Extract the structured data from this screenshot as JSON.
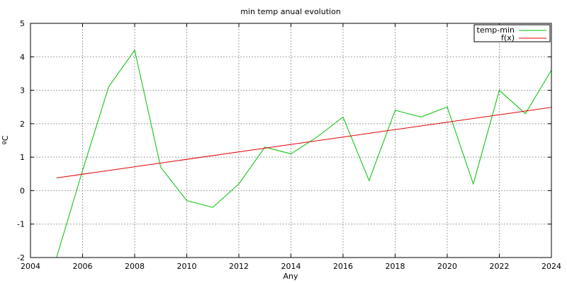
{
  "chart_data": {
    "type": "line",
    "title": "min temp anual evolution",
    "xlabel": "Any",
    "ylabel": "ºC",
    "xlim": [
      2004,
      2024
    ],
    "ylim": [
      -2,
      5
    ],
    "xticks": [
      2004,
      2006,
      2008,
      2010,
      2012,
      2014,
      2016,
      2018,
      2020,
      2022,
      2024
    ],
    "yticks": [
      -2,
      -1,
      0,
      1,
      2,
      3,
      4,
      5
    ],
    "grid": true,
    "legend_position": "top-right",
    "series": [
      {
        "name": "temp-min",
        "color": "#00c000",
        "x": [
          2005,
          2006,
          2007,
          2008,
          2009,
          2010,
          2011,
          2012,
          2013,
          2014,
          2015,
          2016,
          2017,
          2018,
          2019,
          2020,
          2021,
          2022,
          2023,
          2024
        ],
        "y": [
          -2.0,
          0.6,
          3.1,
          4.2,
          0.7,
          -0.3,
          -0.5,
          0.2,
          1.3,
          1.1,
          1.6,
          2.2,
          0.3,
          2.4,
          2.2,
          2.5,
          0.2,
          3.0,
          2.3,
          3.6
        ]
      },
      {
        "name": "f(x)",
        "color": "#e00000",
        "x": [
          2005,
          2024
        ],
        "y": [
          0.38,
          2.49
        ]
      }
    ]
  }
}
